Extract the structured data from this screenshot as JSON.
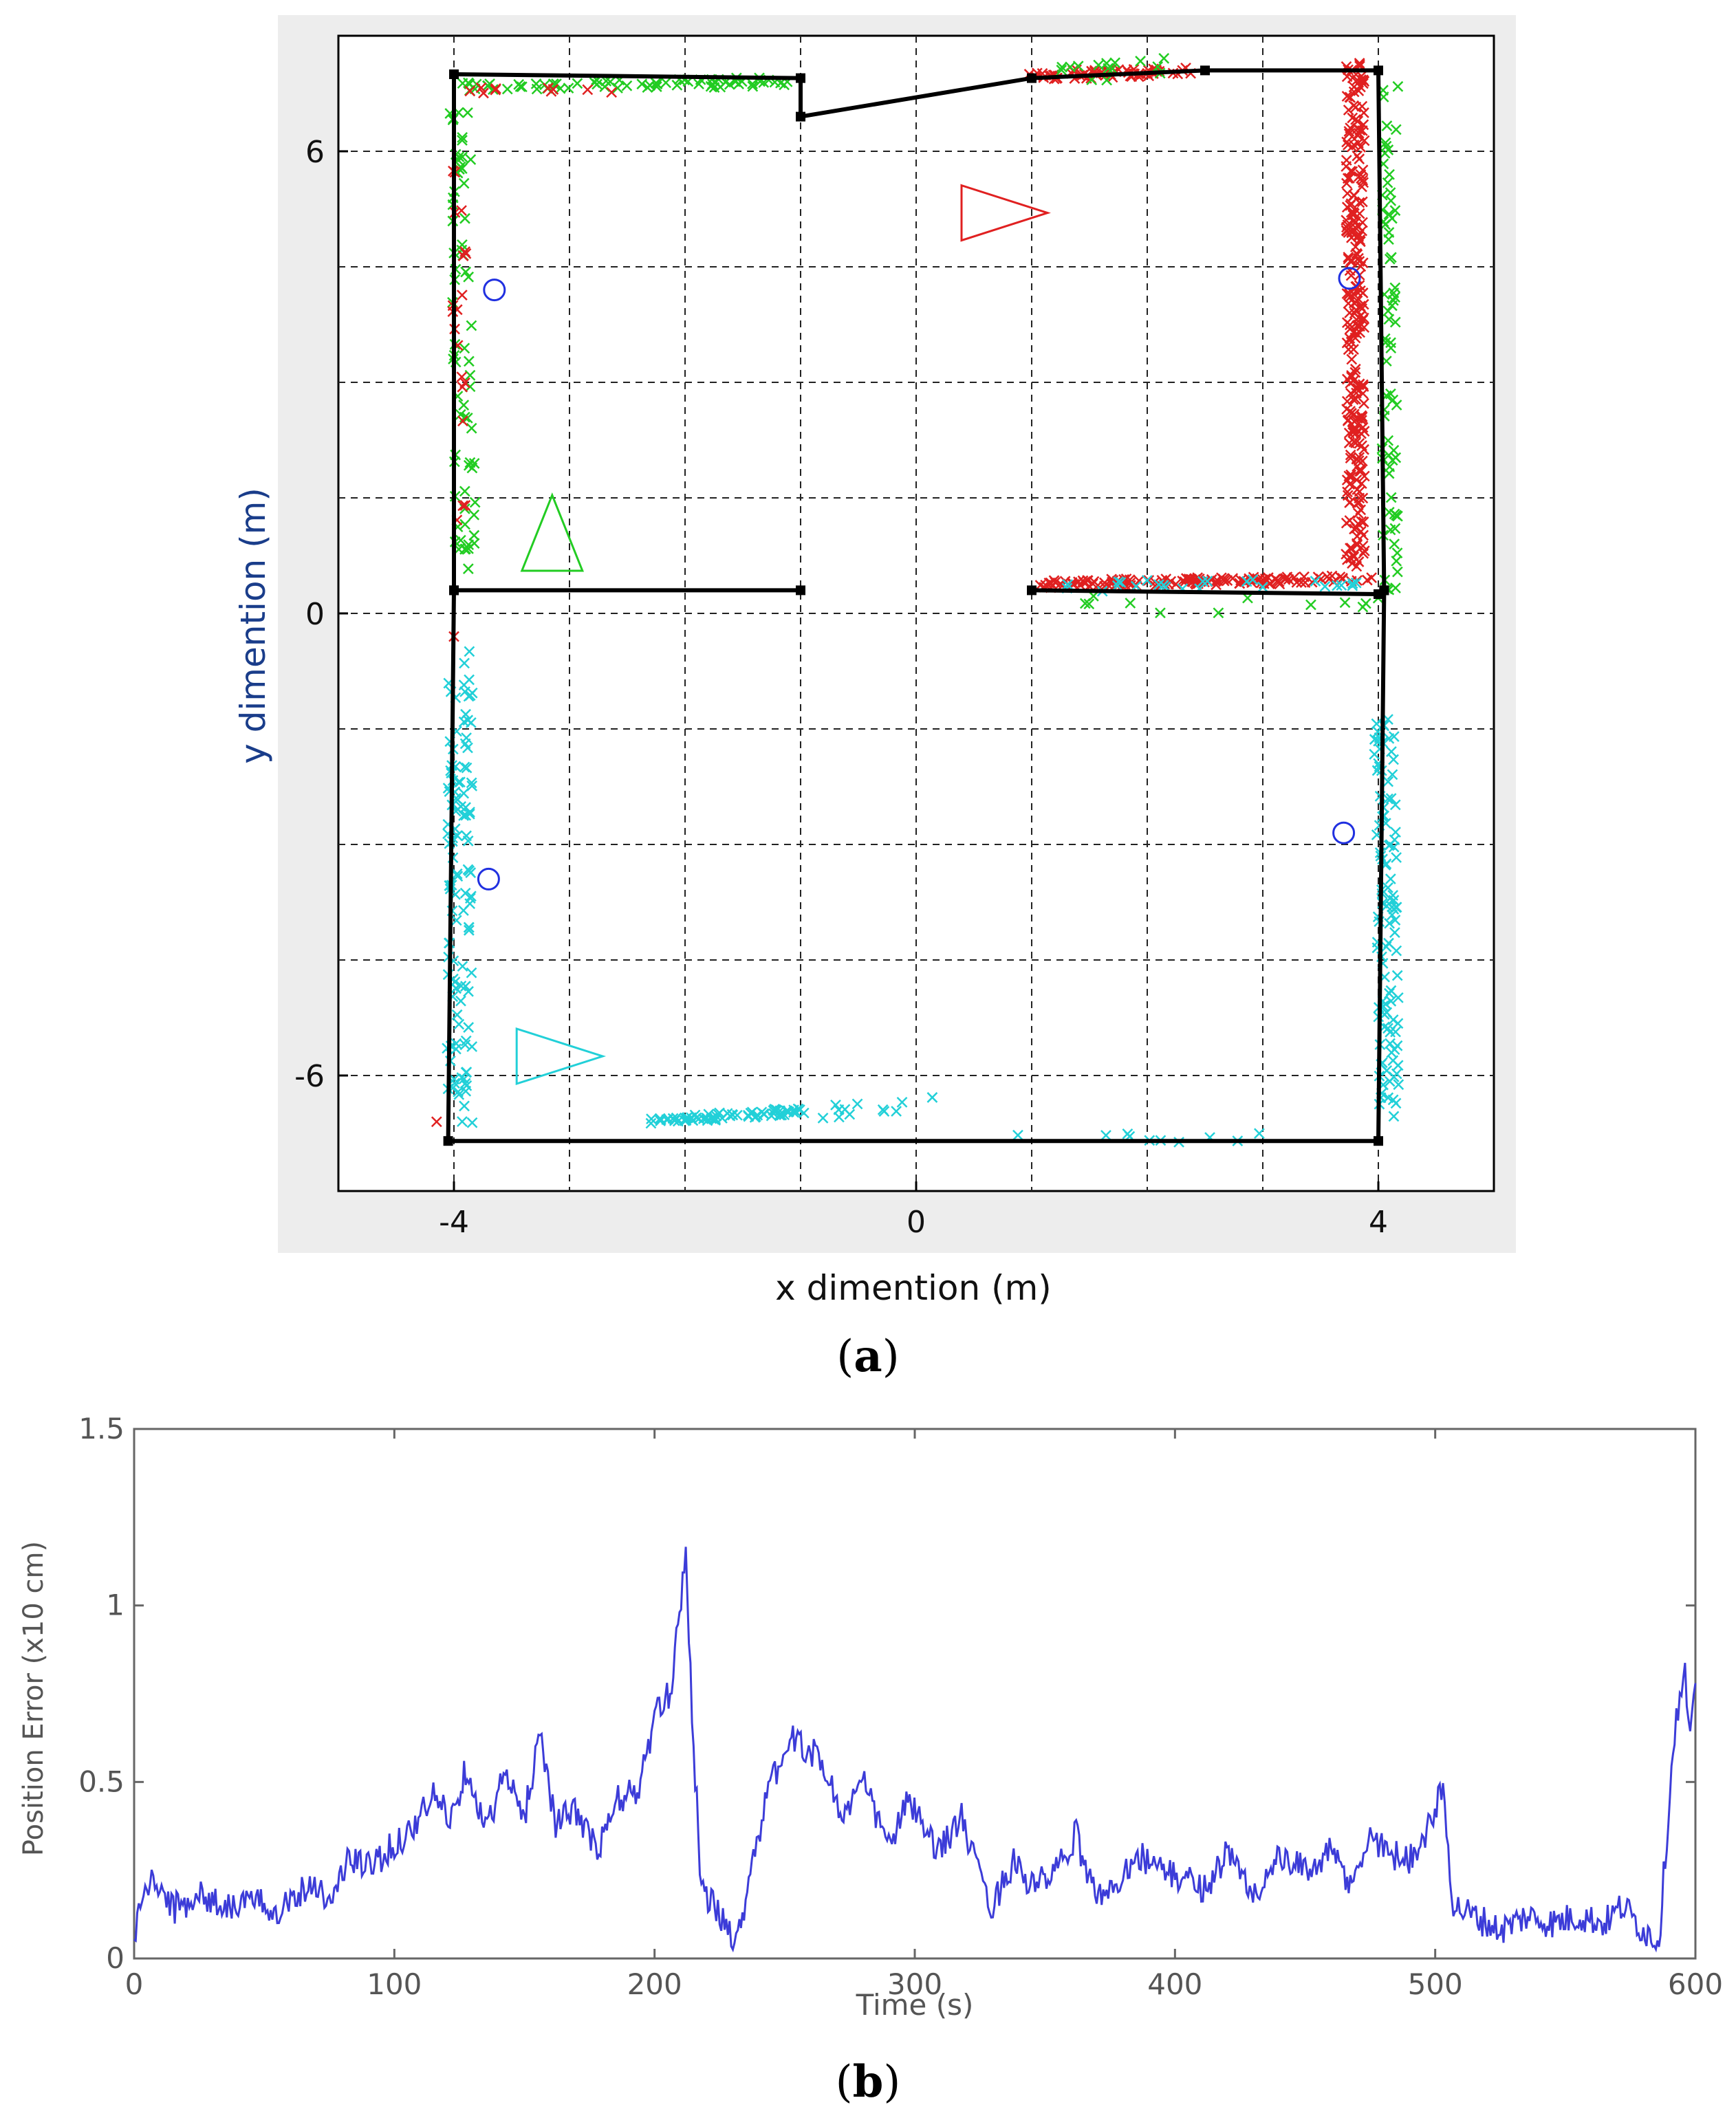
{
  "chart_data": [
    {
      "type": "scatter",
      "panel": "a",
      "caption_label": "a",
      "xlabel": "x dimention (m)",
      "ylabel": "y dimention (m)",
      "xlim": [
        -5,
        5
      ],
      "ylim": [
        -7.5,
        7.5
      ],
      "xticks": [
        -4,
        0,
        4
      ],
      "yticks": [
        -6,
        0,
        6
      ],
      "grid_x": [
        -4,
        -3,
        -2,
        -1,
        0,
        1,
        2,
        3,
        4
      ],
      "grid_y": [
        -6,
        -4.5,
        -3,
        -1.5,
        0,
        1.5,
        3,
        4.5,
        6
      ],
      "grid": "dashed",
      "walls": [
        [
          [
            -4.0,
            7.0
          ],
          [
            -4.0,
            0.3
          ],
          [
            -1.0,
            0.3
          ]
        ],
        [
          [
            -4.0,
            7.0
          ],
          [
            -1.0,
            6.95
          ],
          [
            -1.0,
            6.45
          ],
          [
            1.0,
            6.95
          ],
          [
            2.5,
            7.05
          ],
          [
            4.0,
            7.05
          ],
          [
            4.05,
            0.3
          ]
        ],
        [
          [
            1.0,
            0.3
          ],
          [
            4.0,
            0.25
          ]
        ],
        [
          [
            -4.0,
            0.3
          ],
          [
            -4.05,
            -6.85
          ],
          [
            4.0,
            -6.85
          ],
          [
            4.05,
            0.3
          ]
        ]
      ],
      "anchors": [
        [
          -3.65,
          4.2
        ],
        [
          3.75,
          4.35
        ],
        [
          -3.7,
          -3.45
        ],
        [
          3.7,
          -2.85
        ]
      ],
      "robots": [
        {
          "name": "red",
          "color": "#e02020",
          "shape": "triangle-right",
          "x": 0.75,
          "y": 5.2
        },
        {
          "name": "green",
          "color": "#22cc22",
          "shape": "triangle-up",
          "x": -3.15,
          "y": 1.0
        },
        {
          "name": "cyan",
          "color": "#22d0d8",
          "shape": "triangle-right",
          "x": -3.1,
          "y": -5.75
        }
      ],
      "legend": "none"
    },
    {
      "type": "line",
      "panel": "b",
      "caption_label": "b",
      "xlabel": "Time (s)",
      "ylabel": "Position Error (x10 cm)",
      "xlim": [
        0,
        600
      ],
      "ylim": [
        0,
        1.5
      ],
      "xticks": [
        0,
        100,
        200,
        300,
        400,
        500,
        600
      ],
      "yticks": [
        0,
        0.5,
        1,
        1.5
      ],
      "series": [
        {
          "name": "Position Error",
          "color": "#3c3cd8",
          "keypoints": [
            [
              0,
              0.05
            ],
            [
              3,
              0.18
            ],
            [
              8,
              0.22
            ],
            [
              15,
              0.14
            ],
            [
              25,
              0.18
            ],
            [
              35,
              0.15
            ],
            [
              45,
              0.16
            ],
            [
              55,
              0.14
            ],
            [
              62,
              0.18
            ],
            [
              70,
              0.22
            ],
            [
              75,
              0.15
            ],
            [
              82,
              0.28
            ],
            [
              90,
              0.26
            ],
            [
              100,
              0.32
            ],
            [
              108,
              0.38
            ],
            [
              115,
              0.46
            ],
            [
              122,
              0.4
            ],
            [
              128,
              0.55
            ],
            [
              135,
              0.36
            ],
            [
              142,
              0.52
            ],
            [
              150,
              0.4
            ],
            [
              156,
              0.65
            ],
            [
              162,
              0.38
            ],
            [
              170,
              0.42
            ],
            [
              178,
              0.3
            ],
            [
              186,
              0.45
            ],
            [
              194,
              0.48
            ],
            [
              200,
              0.68
            ],
            [
              206,
              0.75
            ],
            [
              212,
              1.15
            ],
            [
              215,
              0.6
            ],
            [
              218,
              0.2
            ],
            [
              225,
              0.12
            ],
            [
              232,
              0.05
            ],
            [
              238,
              0.3
            ],
            [
              245,
              0.5
            ],
            [
              252,
              0.62
            ],
            [
              258,
              0.6
            ],
            [
              265,
              0.55
            ],
            [
              272,
              0.4
            ],
            [
              280,
              0.5
            ],
            [
              290,
              0.32
            ],
            [
              298,
              0.45
            ],
            [
              308,
              0.3
            ],
            [
              318,
              0.4
            ],
            [
              325,
              0.22
            ],
            [
              330,
              0.15
            ],
            [
              338,
              0.28
            ],
            [
              345,
              0.2
            ],
            [
              355,
              0.25
            ],
            [
              362,
              0.35
            ],
            [
              368,
              0.2
            ],
            [
              375,
              0.18
            ],
            [
              385,
              0.3
            ],
            [
              395,
              0.25
            ],
            [
              405,
              0.22
            ],
            [
              412,
              0.2
            ],
            [
              420,
              0.3
            ],
            [
              430,
              0.18
            ],
            [
              440,
              0.28
            ],
            [
              450,
              0.25
            ],
            [
              460,
              0.3
            ],
            [
              468,
              0.2
            ],
            [
              475,
              0.35
            ],
            [
              482,
              0.3
            ],
            [
              490,
              0.28
            ],
            [
              498,
              0.38
            ],
            [
              503,
              0.48
            ],
            [
              507,
              0.15
            ],
            [
              515,
              0.12
            ],
            [
              525,
              0.08
            ],
            [
              535,
              0.12
            ],
            [
              545,
              0.1
            ],
            [
              555,
              0.12
            ],
            [
              565,
              0.1
            ],
            [
              572,
              0.15
            ],
            [
              580,
              0.08
            ],
            [
              586,
              0.05
            ],
            [
              592,
              0.65
            ],
            [
              596,
              0.8
            ],
            [
              598,
              0.6
            ],
            [
              600,
              0.78
            ]
          ]
        }
      ],
      "legend": "none"
    }
  ]
}
